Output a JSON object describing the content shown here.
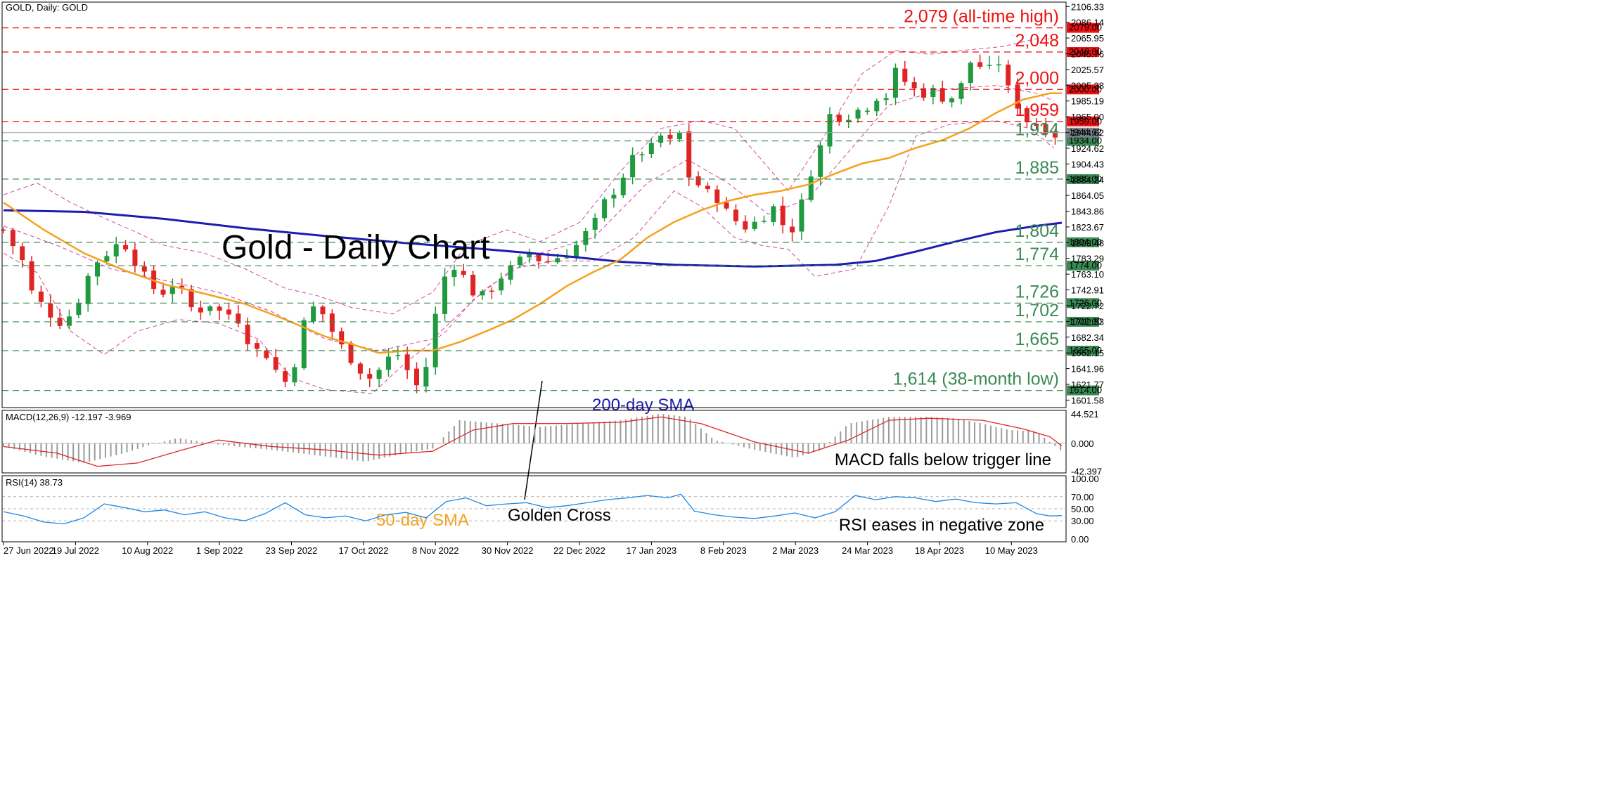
{
  "chart_data": {
    "type": "candlestick",
    "symbol_header": "GOLD, Daily:  GOLD",
    "title": "Gold - Daily Chart",
    "x_ticks": [
      "27 Jun 2022",
      "19 Jul 2022",
      "10 Aug 2022",
      "1 Sep 2022",
      "23 Sep 2022",
      "17 Oct 2022",
      "8 Nov 2022",
      "30 Nov 2022",
      "22 Dec 2022",
      "17 Jan 2023",
      "8 Feb 2023",
      "2 Mar 2023",
      "24 Mar 2023",
      "18 Apr 2023",
      "10 May 2023"
    ],
    "price_axis": {
      "ylim": [
        1592,
        2112
      ],
      "ticks": [
        "2106.33",
        "2086.14",
        "2065.95",
        "2045.76",
        "2025.57",
        "2005.38",
        "1985.19",
        "1965.00",
        "1944.62",
        "1924.62",
        "1904.43",
        "1884.24",
        "1864.05",
        "1843.86",
        "1823.67",
        "1803.48",
        "1783.29",
        "1763.10",
        "1742.91",
        "1722.72",
        "1702.53",
        "1682.34",
        "1662.15",
        "1641.96",
        "1621.77",
        "1601.58"
      ],
      "current_price": "1944.62"
    },
    "levels": [
      {
        "value": 2079,
        "label": "2,079 (all-time high)",
        "tag": "2079.00",
        "color": "#ee1111"
      },
      {
        "value": 2048,
        "label": "2,048",
        "tag": "2048.00",
        "color": "#ee1111"
      },
      {
        "value": 2000,
        "label": "2,000",
        "tag": "2000.00",
        "color": "#ee1111"
      },
      {
        "value": 1959,
        "label": "1,959",
        "tag": "1959.00",
        "color": "#ee1111"
      },
      {
        "value": 1934,
        "label": "1,934",
        "tag": "1934.00",
        "color": "#3a8a55"
      },
      {
        "value": 1885,
        "label": "1,885",
        "tag": "1885.00",
        "color": "#3a8a55"
      },
      {
        "value": 1804,
        "label": "1,804",
        "tag": "1804.00",
        "color": "#3a8a55"
      },
      {
        "value": 1774,
        "label": "1,774",
        "tag": "1774.00",
        "color": "#3a8a55"
      },
      {
        "value": 1726,
        "label": "1,726",
        "tag": "1726.00",
        "color": "#3a8a55"
      },
      {
        "value": 1702,
        "label": "1,702",
        "tag": "1702.00",
        "color": "#3a8a55"
      },
      {
        "value": 1665,
        "label": "1,665",
        "tag": "1665.00",
        "color": "#3a8a55"
      },
      {
        "value": 1614,
        "label": "1,614 (38-month low)",
        "tag": "1614.00",
        "color": "#3a8a55"
      }
    ],
    "close_path": [
      [
        0,
        1820
      ],
      [
        7,
        1800
      ],
      [
        14,
        1780
      ],
      [
        21,
        1740
      ],
      [
        28,
        1725
      ],
      [
        35,
        1712
      ],
      [
        42,
        1702
      ],
      [
        49,
        1710
      ],
      [
        56,
        1730
      ],
      [
        63,
        1760
      ],
      [
        70,
        1780
      ],
      [
        77,
        1790
      ],
      [
        84,
        1800
      ],
      [
        91,
        1800
      ],
      [
        98,
        1780
      ],
      [
        105,
        1760
      ],
      [
        112,
        1745
      ],
      [
        119,
        1740
      ],
      [
        126,
        1750
      ],
      [
        133,
        1740
      ],
      [
        140,
        1720
      ],
      [
        147,
        1718
      ],
      [
        154,
        1725
      ],
      [
        161,
        1715
      ],
      [
        168,
        1712
      ],
      [
        175,
        1705
      ],
      [
        182,
        1680
      ],
      [
        189,
        1665
      ],
      [
        196,
        1660
      ],
      [
        203,
        1640
      ],
      [
        210,
        1625
      ],
      [
        217,
        1650
      ],
      [
        224,
        1700
      ],
      [
        231,
        1720
      ],
      [
        238,
        1712
      ],
      [
        245,
        1690
      ],
      [
        252,
        1670
      ],
      [
        259,
        1655
      ],
      [
        266,
        1640
      ],
      [
        273,
        1630
      ],
      [
        280,
        1640
      ],
      [
        287,
        1655
      ],
      [
        294,
        1660
      ],
      [
        301,
        1640
      ],
      [
        308,
        1620
      ],
      [
        315,
        1645
      ],
      [
        322,
        1710
      ],
      [
        329,
        1760
      ],
      [
        336,
        1775
      ],
      [
        343,
        1760
      ],
      [
        350,
        1740
      ],
      [
        357,
        1735
      ],
      [
        364,
        1745
      ],
      [
        371,
        1760
      ],
      [
        378,
        1770
      ],
      [
        385,
        1780
      ],
      [
        392,
        1790
      ],
      [
        399,
        1782
      ],
      [
        406,
        1780
      ],
      [
        413,
        1785
      ],
      [
        420,
        1790
      ],
      [
        427,
        1800
      ],
      [
        434,
        1815
      ],
      [
        441,
        1830
      ],
      [
        448,
        1855
      ],
      [
        455,
        1870
      ],
      [
        462,
        1890
      ],
      [
        469,
        1910
      ],
      [
        476,
        1920
      ],
      [
        483,
        1925
      ],
      [
        490,
        1940
      ],
      [
        497,
        1932
      ],
      [
        502,
        1945
      ],
      [
        507,
        1940
      ],
      [
        512,
        1876
      ],
      [
        519,
        1878
      ],
      [
        526,
        1865
      ],
      [
        533,
        1860
      ],
      [
        540,
        1840
      ],
      [
        547,
        1830
      ],
      [
        554,
        1823
      ],
      [
        561,
        1830
      ],
      [
        568,
        1840
      ],
      [
        575,
        1850
      ],
      [
        580,
        1830
      ],
      [
        585,
        1815
      ],
      [
        592,
        1830
      ],
      [
        597,
        1870
      ],
      [
        604,
        1905
      ],
      [
        611,
        1935
      ],
      [
        618,
        1980
      ],
      [
        625,
        1960
      ],
      [
        632,
        1970
      ],
      [
        639,
        1975
      ],
      [
        646,
        1980
      ],
      [
        653,
        1995
      ],
      [
        660,
        1990
      ],
      [
        667,
        2035
      ],
      [
        672,
        2010
      ],
      [
        679,
        2000
      ],
      [
        686,
        1995
      ],
      [
        693,
        1998
      ],
      [
        700,
        1990
      ],
      [
        707,
        1990
      ],
      [
        714,
        2005
      ],
      [
        721,
        2035
      ],
      [
        728,
        2030
      ],
      [
        735,
        2025
      ],
      [
        742,
        2035
      ],
      [
        749,
        2000
      ],
      [
        756,
        1980
      ],
      [
        763,
        1960
      ],
      [
        770,
        1955
      ],
      [
        777,
        1950
      ],
      [
        784,
        1942
      ],
      [
        789,
        1944
      ]
    ],
    "sma50_path": [
      [
        0,
        1855
      ],
      [
        30,
        1820
      ],
      [
        60,
        1790
      ],
      [
        90,
        1768
      ],
      [
        120,
        1750
      ],
      [
        150,
        1738
      ],
      [
        180,
        1725
      ],
      [
        210,
        1705
      ],
      [
        240,
        1683
      ],
      [
        260,
        1673
      ],
      [
        280,
        1662
      ],
      [
        300,
        1665
      ],
      [
        320,
        1665
      ],
      [
        340,
        1676
      ],
      [
        360,
        1690
      ],
      [
        380,
        1705
      ],
      [
        400,
        1725
      ],
      [
        420,
        1748
      ],
      [
        440,
        1766
      ],
      [
        460,
        1782
      ],
      [
        480,
        1810
      ],
      [
        500,
        1830
      ],
      [
        520,
        1845
      ],
      [
        540,
        1857
      ],
      [
        560,
        1865
      ],
      [
        580,
        1870
      ],
      [
        600,
        1878
      ],
      [
        620,
        1892
      ],
      [
        640,
        1905
      ],
      [
        660,
        1912
      ],
      [
        680,
        1925
      ],
      [
        700,
        1935
      ],
      [
        720,
        1950
      ],
      [
        740,
        1970
      ],
      [
        760,
        1987
      ],
      [
        780,
        1995
      ],
      [
        789,
        1995
      ]
    ],
    "sma200_path": [
      [
        0,
        1845
      ],
      [
        60,
        1843
      ],
      [
        120,
        1834
      ],
      [
        180,
        1822
      ],
      [
        240,
        1812
      ],
      [
        300,
        1803
      ],
      [
        360,
        1795
      ],
      [
        420,
        1786
      ],
      [
        460,
        1779
      ],
      [
        500,
        1775
      ],
      [
        560,
        1773
      ],
      [
        620,
        1775
      ],
      [
        650,
        1780
      ],
      [
        680,
        1792
      ],
      [
        710,
        1805
      ],
      [
        740,
        1817
      ],
      [
        770,
        1825
      ],
      [
        789,
        1829
      ]
    ],
    "bb_upper_path": [
      [
        0,
        1865
      ],
      [
        25,
        1880
      ],
      [
        50,
        1855
      ],
      [
        75,
        1835
      ],
      [
        95,
        1820
      ],
      [
        120,
        1800
      ],
      [
        150,
        1790
      ],
      [
        180,
        1770
      ],
      [
        210,
        1745
      ],
      [
        235,
        1735
      ],
      [
        260,
        1720
      ],
      [
        290,
        1712
      ],
      [
        320,
        1740
      ],
      [
        345,
        1800
      ],
      [
        375,
        1820
      ],
      [
        400,
        1805
      ],
      [
        430,
        1830
      ],
      [
        460,
        1895
      ],
      [
        490,
        1950
      ],
      [
        520,
        1960
      ],
      [
        545,
        1950
      ],
      [
        565,
        1910
      ],
      [
        585,
        1870
      ],
      [
        610,
        1935
      ],
      [
        640,
        2020
      ],
      [
        665,
        2050
      ],
      [
        690,
        2045
      ],
      [
        715,
        2050
      ],
      [
        745,
        2055
      ],
      [
        770,
        2065
      ],
      [
        780,
        2065
      ]
    ],
    "bb_lower_path": [
      [
        0,
        1790
      ],
      [
        25,
        1765
      ],
      [
        50,
        1690
      ],
      [
        75,
        1660
      ],
      [
        100,
        1690
      ],
      [
        130,
        1705
      ],
      [
        160,
        1700
      ],
      [
        190,
        1680
      ],
      [
        215,
        1630
      ],
      [
        240,
        1615
      ],
      [
        275,
        1610
      ],
      [
        300,
        1650
      ],
      [
        330,
        1690
      ],
      [
        350,
        1730
      ],
      [
        380,
        1770
      ],
      [
        410,
        1780
      ],
      [
        440,
        1780
      ],
      [
        470,
        1810
      ],
      [
        500,
        1870
      ],
      [
        520,
        1850
      ],
      [
        545,
        1810
      ],
      [
        565,
        1800
      ],
      [
        585,
        1795
      ],
      [
        605,
        1760
      ],
      [
        635,
        1770
      ],
      [
        660,
        1850
      ],
      [
        680,
        1940
      ],
      [
        705,
        1955
      ],
      [
        740,
        1960
      ],
      [
        765,
        1950
      ],
      [
        783,
        1925
      ]
    ],
    "bb_mid_path": [
      [
        0,
        1825
      ],
      [
        40,
        1800
      ],
      [
        80,
        1770
      ],
      [
        120,
        1755
      ],
      [
        160,
        1740
      ],
      [
        200,
        1715
      ],
      [
        240,
        1680
      ],
      [
        280,
        1665
      ],
      [
        320,
        1680
      ],
      [
        360,
        1745
      ],
      [
        400,
        1790
      ],
      [
        440,
        1810
      ],
      [
        480,
        1880
      ],
      [
        510,
        1910
      ],
      [
        540,
        1880
      ],
      [
        570,
        1840
      ],
      [
        600,
        1860
      ],
      [
        630,
        1920
      ],
      [
        660,
        1980
      ],
      [
        700,
        2000
      ],
      [
        740,
        2005
      ],
      [
        770,
        1995
      ],
      [
        783,
        1985
      ]
    ],
    "annotations": {
      "golden_cross": "Golden Cross",
      "sma200": "200-day SMA",
      "sma50": "50-day SMA",
      "macd_note": "MACD falls below trigger line",
      "rsi_note": "RSI eases in negative zone"
    },
    "macd": {
      "label": "MACD(12,26,9) -12.197 -3.969",
      "ticks": [
        "44.521",
        "0.000",
        "-42.397"
      ],
      "ylim": [
        -45,
        50
      ],
      "hist_path": [
        [
          0,
          -5
        ],
        [
          30,
          -20
        ],
        [
          60,
          -30
        ],
        [
          90,
          -15
        ],
        [
          110,
          -2
        ],
        [
          130,
          8
        ],
        [
          160,
          -2
        ],
        [
          200,
          -10
        ],
        [
          240,
          -20
        ],
        [
          270,
          -28
        ],
        [
          300,
          -15
        ],
        [
          320,
          -8
        ],
        [
          340,
          35
        ],
        [
          370,
          30
        ],
        [
          400,
          25
        ],
        [
          430,
          30
        ],
        [
          460,
          35
        ],
        [
          490,
          45
        ],
        [
          510,
          40
        ],
        [
          530,
          5
        ],
        [
          560,
          -10
        ],
        [
          590,
          -22
        ],
        [
          610,
          -10
        ],
        [
          630,
          30
        ],
        [
          660,
          40
        ],
        [
          690,
          40
        ],
        [
          710,
          38
        ],
        [
          730,
          30
        ],
        [
          750,
          20
        ],
        [
          770,
          18
        ],
        [
          789,
          -12
        ]
      ],
      "signal_path": [
        [
          0,
          -5
        ],
        [
          40,
          -15
        ],
        [
          70,
          -35
        ],
        [
          100,
          -30
        ],
        [
          130,
          -12
        ],
        [
          160,
          5
        ],
        [
          200,
          -5
        ],
        [
          240,
          -10
        ],
        [
          280,
          -18
        ],
        [
          320,
          -12
        ],
        [
          350,
          20
        ],
        [
          380,
          30
        ],
        [
          420,
          30
        ],
        [
          460,
          32
        ],
        [
          490,
          40
        ],
        [
          520,
          30
        ],
        [
          560,
          2
        ],
        [
          600,
          -15
        ],
        [
          630,
          5
        ],
        [
          660,
          35
        ],
        [
          690,
          38
        ],
        [
          730,
          35
        ],
        [
          760,
          22
        ],
        [
          780,
          10
        ],
        [
          789,
          -4
        ]
      ]
    },
    "rsi": {
      "label": "RSI(14) 38.73",
      "ticks": [
        "100.00",
        "70.00",
        "50.00",
        "30.00",
        "0.00"
      ],
      "ylim": [
        0,
        100
      ],
      "path": [
        [
          0,
          45
        ],
        [
          15,
          38
        ],
        [
          30,
          28
        ],
        [
          45,
          25
        ],
        [
          60,
          35
        ],
        [
          75,
          58
        ],
        [
          90,
          52
        ],
        [
          105,
          45
        ],
        [
          120,
          48
        ],
        [
          135,
          40
        ],
        [
          150,
          45
        ],
        [
          165,
          35
        ],
        [
          180,
          30
        ],
        [
          195,
          42
        ],
        [
          210,
          60
        ],
        [
          225,
          40
        ],
        [
          240,
          35
        ],
        [
          255,
          38
        ],
        [
          270,
          30
        ],
        [
          285,
          40
        ],
        [
          300,
          44
        ],
        [
          315,
          35
        ],
        [
          330,
          62
        ],
        [
          345,
          68
        ],
        [
          360,
          55
        ],
        [
          375,
          58
        ],
        [
          390,
          60
        ],
        [
          405,
          52
        ],
        [
          420,
          55
        ],
        [
          435,
          60
        ],
        [
          450,
          65
        ],
        [
          465,
          68
        ],
        [
          480,
          72
        ],
        [
          495,
          68
        ],
        [
          505,
          74
        ],
        [
          515,
          46
        ],
        [
          530,
          40
        ],
        [
          545,
          36
        ],
        [
          560,
          34
        ],
        [
          575,
          38
        ],
        [
          590,
          43
        ],
        [
          605,
          35
        ],
        [
          620,
          45
        ],
        [
          635,
          72
        ],
        [
          650,
          65
        ],
        [
          665,
          70
        ],
        [
          680,
          68
        ],
        [
          695,
          62
        ],
        [
          710,
          66
        ],
        [
          725,
          60
        ],
        [
          740,
          58
        ],
        [
          755,
          60
        ],
        [
          770,
          42
        ],
        [
          780,
          38
        ],
        [
          789,
          38.73
        ]
      ]
    }
  }
}
